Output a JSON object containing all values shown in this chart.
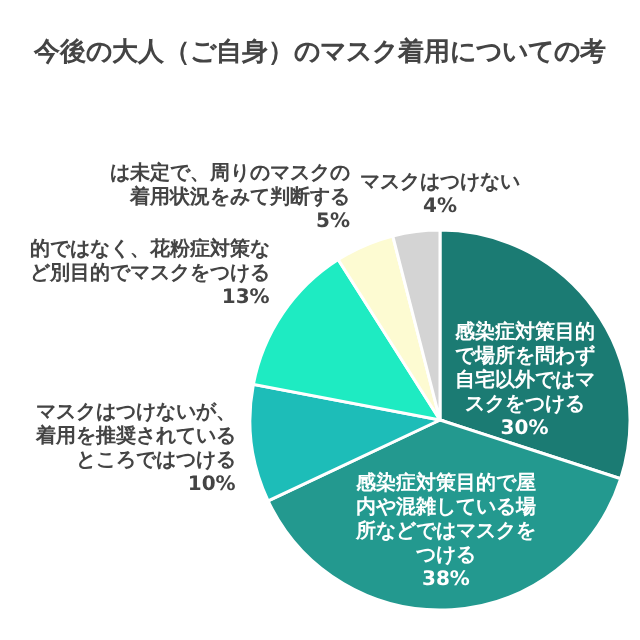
{
  "chart_data": {
    "type": "pie",
    "title": "今後の大人（ご自身）のマスク着用についての考",
    "categories": [
      "感染症対策目的で場所を問わず自宅以外ではマスクをつける",
      "感染症対策目的で屋内や混雑している場所などではマスクをつける",
      "マスクはつけないが、着用を推奨されているところではつける",
      "的ではなく、花粉症対策など別目的でマスクをつける",
      "は未定で、周りのマスクの着用状況をみて判断する",
      "マスクはつけない"
    ],
    "values": [
      30,
      38,
      10,
      13,
      5,
      4
    ],
    "colors": [
      "#1b7b73",
      "#23998f",
      "#1dbdb8",
      "#1eebc2",
      "#fdfbd2",
      "#d4d4d4"
    ],
    "value_labels": [
      "30%",
      "38%",
      "10%",
      "13%",
      "5%",
      "4%"
    ]
  }
}
